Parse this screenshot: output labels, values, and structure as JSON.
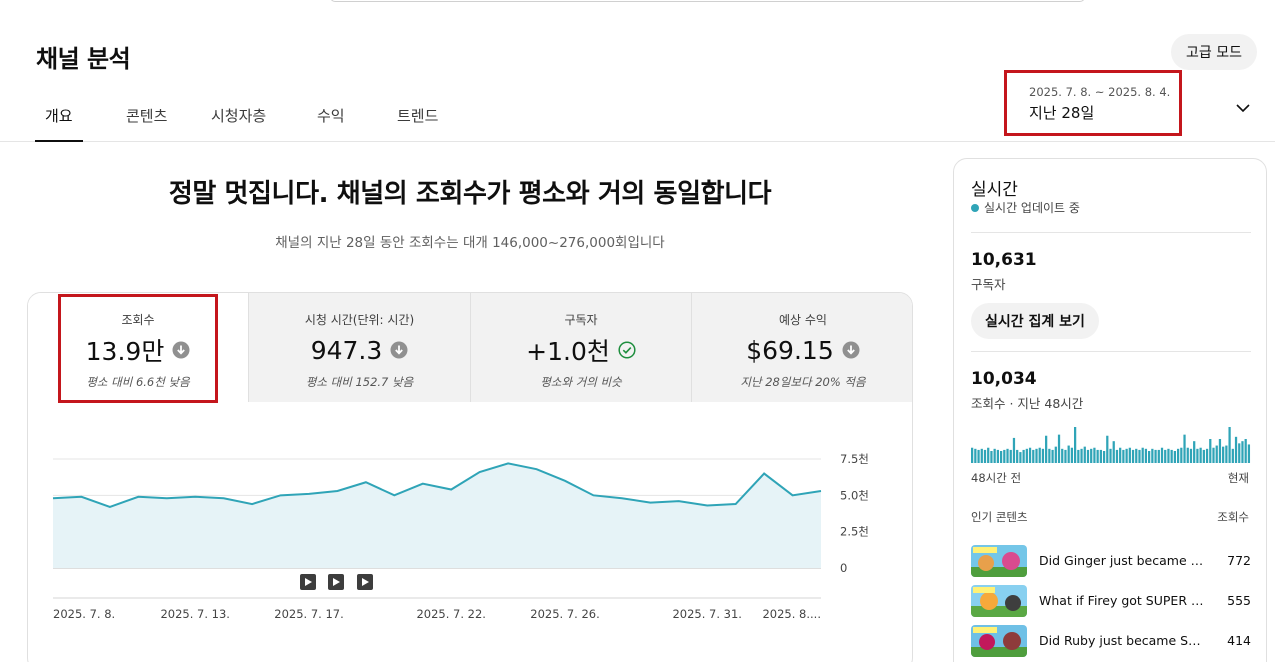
{
  "header": {
    "title": "채널 분석",
    "advanced_button": "고급 모드",
    "tabs": [
      "개요",
      "콘텐츠",
      "시청자층",
      "수익",
      "트렌드"
    ],
    "date_range": "2025. 7. 8. ~ 2025. 8. 4.",
    "date_label": "지난 28일"
  },
  "summary": {
    "headline": "정말 멋집니다. 채널의 조회수가 평소와 거의 동일합니다",
    "subline": "채널의 지난 28일 동안 조회수는 대개 146,000~276,000회입니다"
  },
  "metrics": [
    {
      "label": "조회수",
      "value": "13.9만",
      "note": "평소 대비 6.6천 낮음",
      "status_icon": "arrow-down-circle-icon"
    },
    {
      "label": "시청 시간(단위: 시간)",
      "value": "947.3",
      "note": "평소 대비 152.7 낮음",
      "status_icon": "arrow-down-circle-icon"
    },
    {
      "label": "구독자",
      "value": "+1.0천",
      "note": "평소와 거의 비슷",
      "status_icon": "check-circle-icon"
    },
    {
      "label": "예상 수익",
      "value": "$69.15",
      "note": "지난 28일보다 20% 적음",
      "status_icon": "arrow-down-circle-icon"
    }
  ],
  "chart_data": {
    "type": "area",
    "x": [
      "2025-07-08",
      "2025-07-09",
      "2025-07-10",
      "2025-07-11",
      "2025-07-12",
      "2025-07-13",
      "2025-07-14",
      "2025-07-15",
      "2025-07-16",
      "2025-07-17",
      "2025-07-18",
      "2025-07-19",
      "2025-07-20",
      "2025-07-21",
      "2025-07-22",
      "2025-07-23",
      "2025-07-24",
      "2025-07-25",
      "2025-07-26",
      "2025-07-27",
      "2025-07-28",
      "2025-07-29",
      "2025-07-30",
      "2025-07-31",
      "2025-08-01",
      "2025-08-02",
      "2025-08-03",
      "2025-08-04"
    ],
    "series": [
      {
        "values": [
          4.8,
          4.9,
          4.2,
          4.9,
          4.8,
          4.9,
          4.8,
          4.4,
          5.0,
          5.1,
          5.3,
          5.9,
          5.0,
          5.8,
          5.4,
          6.6,
          7.2,
          6.8,
          6.0,
          5.0,
          4.8,
          4.5,
          4.6,
          4.3,
          4.4,
          6.5,
          5.0,
          5.3
        ]
      }
    ],
    "x_tick_labels": [
      "2025. 7. 8.",
      "2025. 7. 13.",
      "2025. 7. 17.",
      "2025. 7. 22.",
      "2025. 7. 26.",
      "2025. 7. 31.",
      "2025. 8...."
    ],
    "y_tick_labels": [
      "7.5천",
      "5.0천",
      "2.5천",
      "0"
    ],
    "ylim": [
      0,
      7.5
    ],
    "grid": true,
    "line_color": "#2fa4b7",
    "fill_color": "#e6f3f7"
  },
  "realtime": {
    "title": "실시간",
    "status": "실시간 업데이트 중",
    "subscribers": "10,631",
    "subscribers_label": "구독자",
    "button": "실시간 집계 보기",
    "views": "10,034",
    "views_label": "조회수 · 지난 48시간",
    "bars": [
      14,
      13,
      12,
      13,
      12,
      14,
      11,
      13,
      12,
      11,
      12,
      13,
      12,
      23,
      12,
      10,
      12,
      13,
      14,
      12,
      13,
      14,
      13,
      25,
      13,
      12,
      15,
      26,
      13,
      12,
      16,
      14,
      33,
      12,
      13,
      15,
      12,
      13,
      14,
      12,
      12,
      11,
      25,
      13,
      20,
      12,
      14,
      12,
      13,
      14,
      12,
      13,
      12,
      14,
      13,
      11,
      13,
      12,
      12,
      14,
      12,
      13,
      12,
      11,
      13,
      14,
      26,
      14,
      13,
      20,
      13,
      14,
      12,
      13,
      22,
      14,
      16,
      22,
      15,
      16,
      33,
      13,
      24,
      18,
      20,
      22,
      17
    ],
    "bar_color": "#2fa4b7",
    "axis_start": "48시간 전",
    "axis_end": "현재",
    "popular_label": "인기 콘텐츠",
    "popular_views_label": "조회수",
    "items": [
      {
        "title": "Did Ginger just became SU...",
        "views": "772"
      },
      {
        "title": "What if Firey got SUPER FA...",
        "views": "555"
      },
      {
        "title": "Did Ruby just became SUP...",
        "views": "414"
      }
    ]
  }
}
